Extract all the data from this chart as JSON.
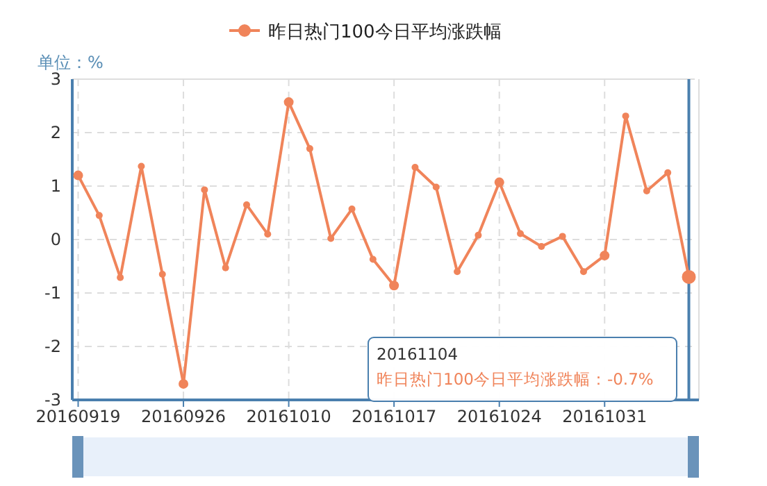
{
  "chart_data": {
    "type": "line",
    "ylabel": "单位：%",
    "categories": [
      "20160919",
      null,
      null,
      null,
      null,
      "20160926",
      null,
      null,
      null,
      null,
      "20161010",
      null,
      null,
      null,
      null,
      "20161017",
      null,
      null,
      null,
      null,
      "20161024",
      null,
      null,
      null,
      null,
      "20161031",
      null,
      null,
      null,
      null
    ],
    "series": [
      {
        "name": "昨日热门100今日平均涨跌幅",
        "color": "#f0845a",
        "values": [
          1.2,
          0.45,
          -0.71,
          1.37,
          -0.65,
          -2.7,
          0.93,
          -0.53,
          0.65,
          0.1,
          2.57,
          1.7,
          0.02,
          0.57,
          -0.37,
          -0.86,
          1.35,
          0.98,
          -0.6,
          0.08,
          1.07,
          0.11,
          -0.13,
          0.06,
          -0.6,
          -0.3,
          2.31,
          0.91,
          1.25,
          -0.7
        ]
      }
    ],
    "ylim": [
      -3,
      3
    ],
    "yticks": [
      -3,
      -2,
      -1,
      0,
      1,
      2,
      3
    ],
    "grid": true,
    "legend": "top",
    "marker": "circle",
    "line_style": "solid",
    "annotations": [
      "20161104",
      "昨日热门100今日平均涨跌幅：-0.7%"
    ]
  }
}
